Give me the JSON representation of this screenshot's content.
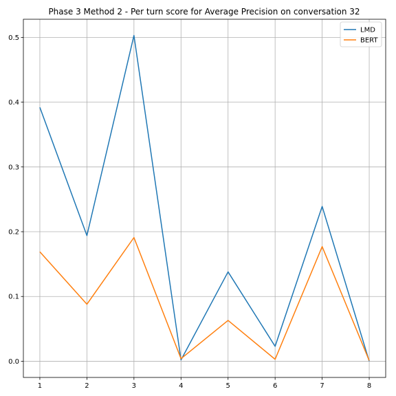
{
  "chart_data": {
    "type": "line",
    "title": "Phase 3 Method 2 - Per turn score for Average Precision on conversation 32",
    "xlabel": "",
    "ylabel": "",
    "x": [
      1,
      2,
      3,
      4,
      5,
      6,
      7,
      8
    ],
    "xticks": [
      1,
      2,
      3,
      4,
      5,
      6,
      7,
      8
    ],
    "yticks": [
      0.0,
      0.1,
      0.2,
      0.3,
      0.4,
      0.5
    ],
    "ytick_labels": [
      "0.0",
      "0.1",
      "0.2",
      "0.3",
      "0.4",
      "0.5"
    ],
    "xlim": [
      0.65,
      8.35
    ],
    "ylim": [
      -0.025,
      0.528
    ],
    "grid": true,
    "legend_position": "top-right",
    "series": [
      {
        "name": "LMD",
        "color": "#1f77b4",
        "values": [
          0.392,
          0.194,
          0.503,
          0.002,
          0.138,
          0.023,
          0.239,
          0.0
        ]
      },
      {
        "name": "BERT",
        "color": "#ff7f0e",
        "values": [
          0.169,
          0.088,
          0.191,
          0.004,
          0.063,
          0.003,
          0.177,
          0.001
        ]
      }
    ]
  }
}
